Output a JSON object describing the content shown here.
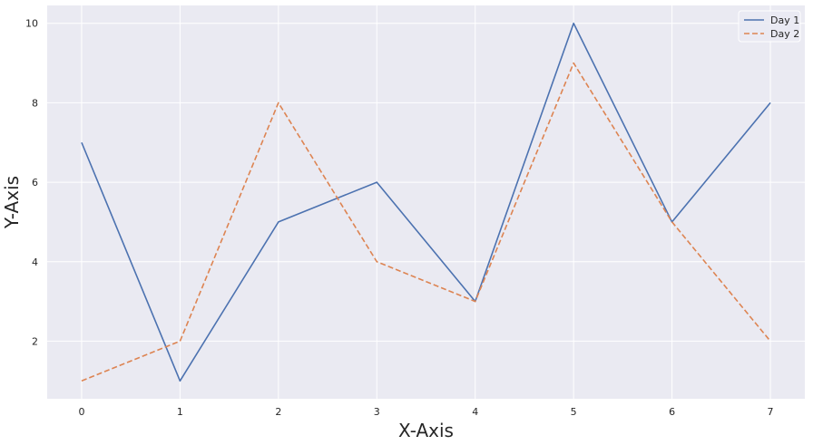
{
  "chart_data": {
    "type": "line",
    "title": "",
    "xlabel": "X-Axis",
    "ylabel": "Y-Axis",
    "x": [
      0,
      1,
      2,
      3,
      4,
      5,
      6,
      7
    ],
    "xlim": [
      -0.35,
      7.35
    ],
    "ylim": [
      0.55,
      10.45
    ],
    "xticks": [
      0,
      1,
      2,
      3,
      4,
      5,
      6,
      7
    ],
    "yticks": [
      2,
      4,
      6,
      8,
      10
    ],
    "grid": true,
    "legend_position": "top-right",
    "series": [
      {
        "name": "Day 1",
        "values": [
          7,
          1,
          5,
          6,
          3,
          10,
          5,
          8
        ],
        "color": "#4c72b0",
        "style": "solid"
      },
      {
        "name": "Day 2",
        "values": [
          1,
          2,
          8,
          4,
          3,
          9,
          5,
          2
        ],
        "color": "#dd8452",
        "style": "dashed"
      }
    ],
    "colors": {
      "plot_background": "#eaeaf2",
      "grid": "#ffffff"
    }
  }
}
